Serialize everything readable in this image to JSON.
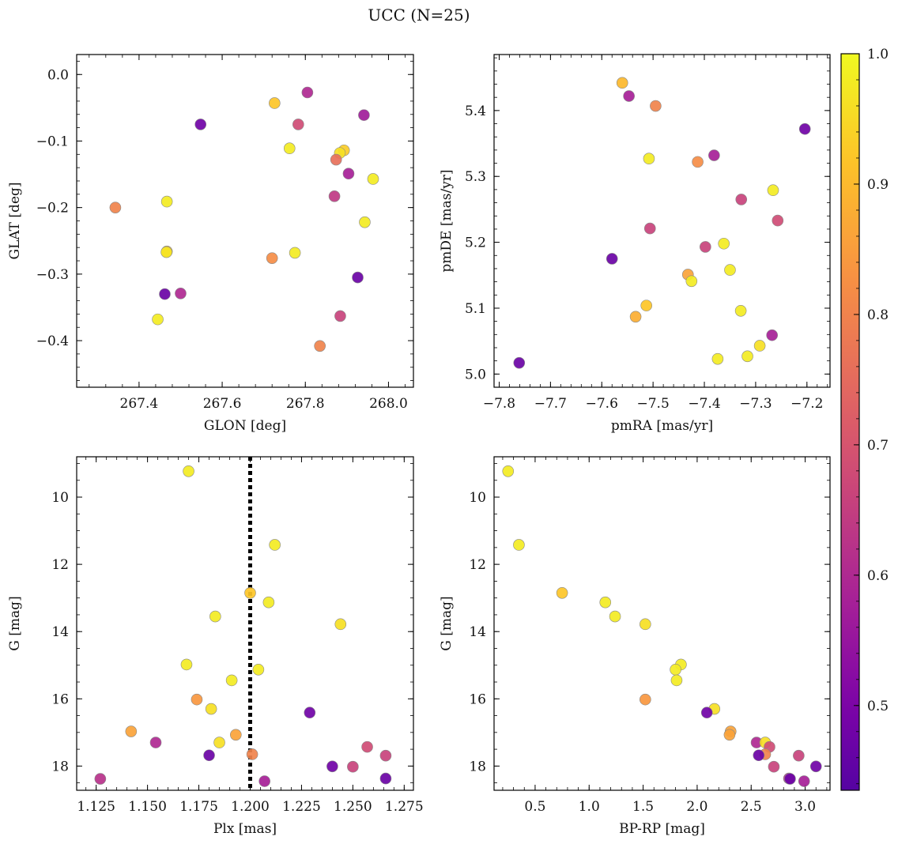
{
  "figure": {
    "title": "UCC (N=25)"
  },
  "colorbar": {
    "cmap": "plasma",
    "range": [
      0.435,
      1.0
    ],
    "ticks": [
      0.5,
      0.6,
      0.7,
      0.8,
      0.9,
      1.0
    ]
  },
  "chart_data": [
    {
      "type": "scatter",
      "id": "glon-glat",
      "xlabel": "GLON [deg]",
      "ylabel": "GLAT [deg]",
      "xlim": [
        267.25,
        268.06
      ],
      "ylim": [
        -0.47,
        0.03
      ],
      "xticks": [
        267.4,
        267.6,
        267.8,
        268.0
      ],
      "yticks": [
        0.0,
        -0.1,
        -0.2,
        -0.3,
        -0.4
      ],
      "tick_decimals": [
        1,
        1
      ],
      "points": [
        {
          "x": 267.548,
          "y": -0.075,
          "c": 0.48
        },
        {
          "x": 267.805,
          "y": -0.027,
          "c": 0.6
        },
        {
          "x": 267.726,
          "y": -0.043,
          "c": 0.92
        },
        {
          "x": 267.941,
          "y": -0.061,
          "c": 0.57
        },
        {
          "x": 267.783,
          "y": -0.075,
          "c": 0.68
        },
        {
          "x": 267.762,
          "y": -0.111,
          "c": 0.98
        },
        {
          "x": 267.893,
          "y": -0.114,
          "c": 0.93
        },
        {
          "x": 267.883,
          "y": -0.118,
          "c": 0.96
        },
        {
          "x": 267.874,
          "y": -0.128,
          "c": 0.76
        },
        {
          "x": 267.904,
          "y": -0.149,
          "c": 0.58
        },
        {
          "x": 267.963,
          "y": -0.157,
          "c": 0.98
        },
        {
          "x": 267.87,
          "y": -0.183,
          "c": 0.64
        },
        {
          "x": 267.467,
          "y": -0.191,
          "c": 0.98
        },
        {
          "x": 267.343,
          "y": -0.2,
          "c": 0.8
        },
        {
          "x": 267.943,
          "y": -0.222,
          "c": 0.98
        },
        {
          "x": 267.467,
          "y": -0.266,
          "c": 0.9
        },
        {
          "x": 267.466,
          "y": -0.267,
          "c": 0.97
        },
        {
          "x": 267.775,
          "y": -0.268,
          "c": 0.98
        },
        {
          "x": 267.72,
          "y": -0.276,
          "c": 0.82
        },
        {
          "x": 267.926,
          "y": -0.305,
          "c": 0.47
        },
        {
          "x": 267.462,
          "y": -0.33,
          "c": 0.47
        },
        {
          "x": 267.5,
          "y": -0.329,
          "c": 0.6
        },
        {
          "x": 267.884,
          "y": -0.363,
          "c": 0.66
        },
        {
          "x": 267.445,
          "y": -0.368,
          "c": 0.98
        },
        {
          "x": 267.835,
          "y": -0.408,
          "c": 0.8
        }
      ]
    },
    {
      "type": "scatter",
      "id": "pm",
      "xlabel": "pmRA [mas/yr]",
      "ylabel": "pmDE [mas/yr]",
      "xlim": [
        -7.81,
        -7.155
      ],
      "ylim": [
        4.98,
        5.485
      ],
      "xticks": [
        -7.8,
        -7.7,
        -7.6,
        -7.5,
        -7.4,
        -7.3,
        -7.2
      ],
      "yticks": [
        5.0,
        5.1,
        5.2,
        5.3,
        5.4
      ],
      "tick_decimals": [
        1,
        1
      ],
      "points": [
        {
          "x": -7.56,
          "y": 5.442,
          "c": 0.9
        },
        {
          "x": -7.547,
          "y": 5.422,
          "c": 0.58
        },
        {
          "x": -7.495,
          "y": 5.407,
          "c": 0.8
        },
        {
          "x": -7.204,
          "y": 5.372,
          "c": 0.48
        },
        {
          "x": -7.381,
          "y": 5.332,
          "c": 0.58
        },
        {
          "x": -7.508,
          "y": 5.327,
          "c": 0.98
        },
        {
          "x": -7.413,
          "y": 5.322,
          "c": 0.82
        },
        {
          "x": -7.266,
          "y": 5.279,
          "c": 0.98
        },
        {
          "x": -7.328,
          "y": 5.265,
          "c": 0.66
        },
        {
          "x": -7.257,
          "y": 5.233,
          "c": 0.68
        },
        {
          "x": -7.506,
          "y": 5.221,
          "c": 0.66
        },
        {
          "x": -7.362,
          "y": 5.198,
          "c": 0.98
        },
        {
          "x": -7.398,
          "y": 5.193,
          "c": 0.66
        },
        {
          "x": -7.58,
          "y": 5.175,
          "c": 0.47
        },
        {
          "x": -7.35,
          "y": 5.158,
          "c": 0.98
        },
        {
          "x": -7.432,
          "y": 5.151,
          "c": 0.86
        },
        {
          "x": -7.425,
          "y": 5.141,
          "c": 0.98
        },
        {
          "x": -7.513,
          "y": 5.104,
          "c": 0.92
        },
        {
          "x": -7.329,
          "y": 5.096,
          "c": 0.98
        },
        {
          "x": -7.534,
          "y": 5.087,
          "c": 0.88
        },
        {
          "x": -7.268,
          "y": 5.059,
          "c": 0.58
        },
        {
          "x": -7.292,
          "y": 5.043,
          "c": 0.96
        },
        {
          "x": -7.316,
          "y": 5.027,
          "c": 0.98
        },
        {
          "x": -7.374,
          "y": 5.023,
          "c": 0.98
        },
        {
          "x": -7.761,
          "y": 5.017,
          "c": 0.47
        }
      ]
    },
    {
      "type": "scatter",
      "id": "plx-g",
      "xlabel": "Plx [mas]",
      "ylabel": "G [mag]",
      "xlim": [
        1.1155,
        1.2795
      ],
      "ylim": [
        18.72,
        8.8
      ],
      "y_inverted": true,
      "xticks": [
        1.125,
        1.15,
        1.175,
        1.2,
        1.225,
        1.25,
        1.275
      ],
      "yticks": [
        10,
        12,
        14,
        16,
        18
      ],
      "tick_decimals": [
        3,
        0
      ],
      "vline": {
        "x": 1.2,
        "style": "dotted"
      },
      "points": [
        {
          "x": 1.17,
          "y": 9.23,
          "c": 0.98
        },
        {
          "x": 1.212,
          "y": 11.42,
          "c": 0.98
        },
        {
          "x": 1.2,
          "y": 12.85,
          "c": 0.92
        },
        {
          "x": 1.209,
          "y": 13.13,
          "c": 0.98
        },
        {
          "x": 1.183,
          "y": 13.55,
          "c": 0.98
        },
        {
          "x": 1.244,
          "y": 13.78,
          "c": 0.96
        },
        {
          "x": 1.169,
          "y": 14.98,
          "c": 0.98
        },
        {
          "x": 1.204,
          "y": 15.13,
          "c": 0.98
        },
        {
          "x": 1.191,
          "y": 15.45,
          "c": 0.98
        },
        {
          "x": 1.174,
          "y": 16.02,
          "c": 0.84
        },
        {
          "x": 1.181,
          "y": 16.3,
          "c": 0.96
        },
        {
          "x": 1.229,
          "y": 16.41,
          "c": 0.48
        },
        {
          "x": 1.142,
          "y": 16.97,
          "c": 0.86
        },
        {
          "x": 1.193,
          "y": 17.07,
          "c": 0.86
        },
        {
          "x": 1.154,
          "y": 17.3,
          "c": 0.6
        },
        {
          "x": 1.185,
          "y": 17.3,
          "c": 0.96
        },
        {
          "x": 1.257,
          "y": 17.43,
          "c": 0.68
        },
        {
          "x": 1.201,
          "y": 17.65,
          "c": 0.8
        },
        {
          "x": 1.18,
          "y": 17.68,
          "c": 0.47
        },
        {
          "x": 1.266,
          "y": 17.69,
          "c": 0.66
        },
        {
          "x": 1.24,
          "y": 18.01,
          "c": 0.48
        },
        {
          "x": 1.25,
          "y": 18.02,
          "c": 0.66
        },
        {
          "x": 1.127,
          "y": 18.38,
          "c": 0.62
        },
        {
          "x": 1.266,
          "y": 18.37,
          "c": 0.47
        },
        {
          "x": 1.207,
          "y": 18.45,
          "c": 0.58
        }
      ]
    },
    {
      "type": "scatter",
      "id": "cmd",
      "xlabel": "BP-RP [mag]",
      "ylabel": "G [mag]",
      "xlim": [
        0.12,
        3.23
      ],
      "ylim": [
        18.72,
        8.8
      ],
      "y_inverted": true,
      "xticks": [
        0.5,
        1.0,
        1.5,
        2.0,
        2.5,
        3.0
      ],
      "yticks": [
        10,
        12,
        14,
        16,
        18
      ],
      "tick_decimals": [
        1,
        0
      ],
      "points": [
        {
          "x": 0.25,
          "y": 9.23,
          "c": 0.98
        },
        {
          "x": 0.35,
          "y": 11.42,
          "c": 0.98
        },
        {
          "x": 0.75,
          "y": 12.85,
          "c": 0.92
        },
        {
          "x": 1.15,
          "y": 13.13,
          "c": 0.98
        },
        {
          "x": 1.24,
          "y": 13.55,
          "c": 0.98
        },
        {
          "x": 1.52,
          "y": 13.78,
          "c": 0.96
        },
        {
          "x": 1.85,
          "y": 14.98,
          "c": 0.98
        },
        {
          "x": 1.8,
          "y": 15.13,
          "c": 0.98
        },
        {
          "x": 1.81,
          "y": 15.45,
          "c": 0.98
        },
        {
          "x": 1.52,
          "y": 16.02,
          "c": 0.84
        },
        {
          "x": 2.16,
          "y": 16.3,
          "c": 0.96
        },
        {
          "x": 2.09,
          "y": 16.41,
          "c": 0.48
        },
        {
          "x": 2.31,
          "y": 16.97,
          "c": 0.86
        },
        {
          "x": 2.3,
          "y": 17.07,
          "c": 0.86
        },
        {
          "x": 2.55,
          "y": 17.3,
          "c": 0.6
        },
        {
          "x": 2.63,
          "y": 17.3,
          "c": 0.96
        },
        {
          "x": 2.67,
          "y": 17.43,
          "c": 0.68
        },
        {
          "x": 2.63,
          "y": 17.65,
          "c": 0.8
        },
        {
          "x": 2.57,
          "y": 17.68,
          "c": 0.47
        },
        {
          "x": 2.94,
          "y": 17.69,
          "c": 0.66
        },
        {
          "x": 3.1,
          "y": 18.01,
          "c": 0.48
        },
        {
          "x": 2.71,
          "y": 18.02,
          "c": 0.66
        },
        {
          "x": 2.85,
          "y": 18.37,
          "c": 0.62
        },
        {
          "x": 2.86,
          "y": 18.38,
          "c": 0.47
        },
        {
          "x": 2.99,
          "y": 18.45,
          "c": 0.58
        }
      ]
    }
  ]
}
